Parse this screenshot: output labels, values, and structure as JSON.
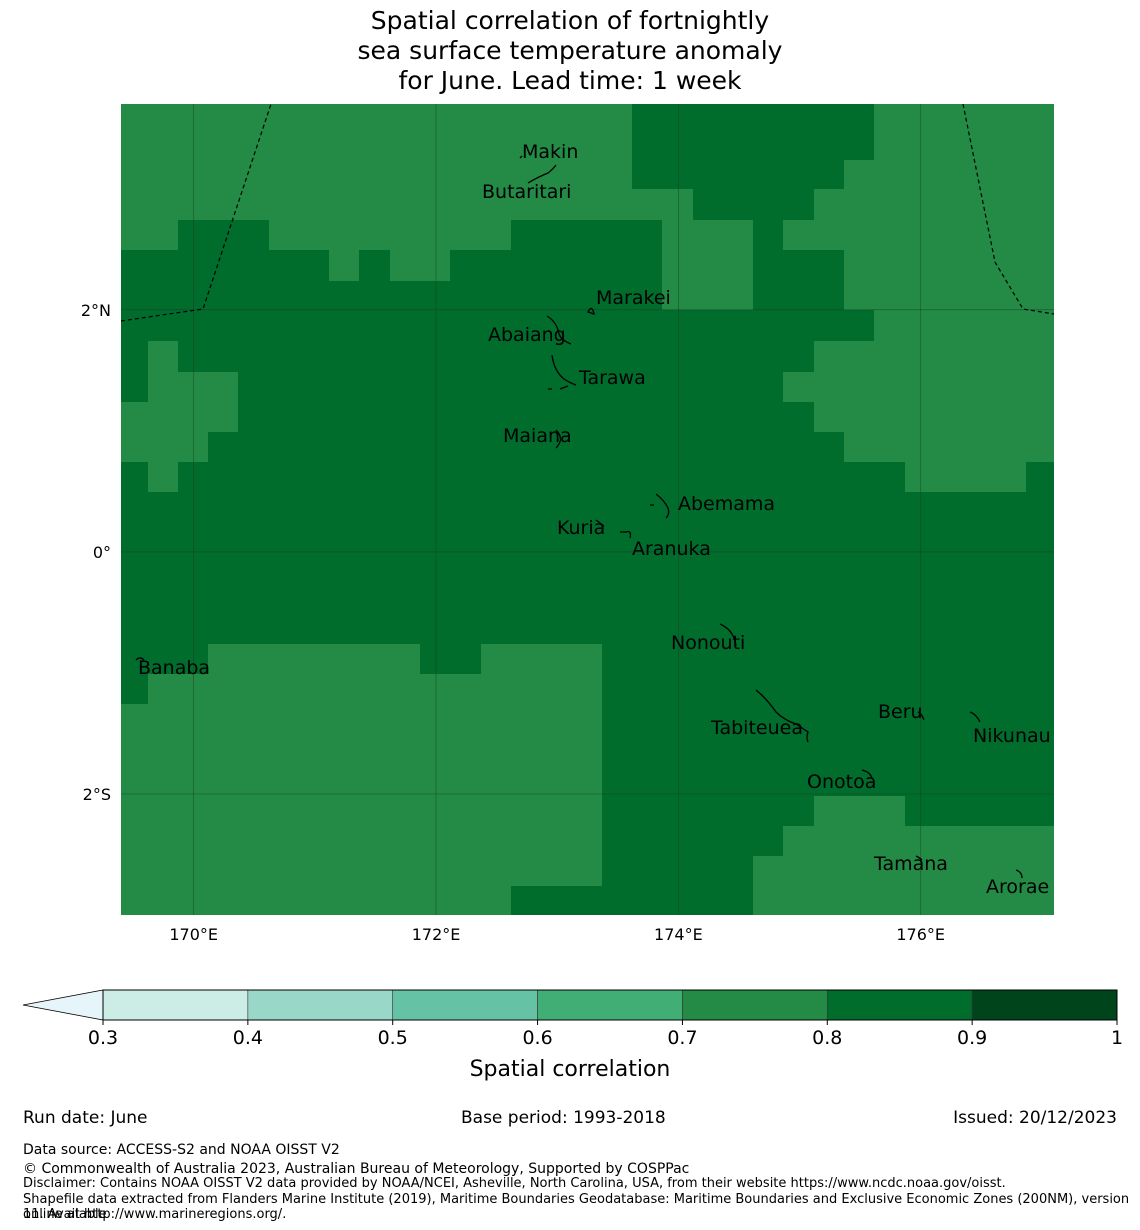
{
  "title_lines": [
    "Spatial correlation of fortnightly",
    "sea surface temperature anomaly",
    "for June. Lead time: 1 week"
  ],
  "map": {
    "lon_range": [
      169.4,
      177.1
    ],
    "lat_range": [
      -3.0,
      3.7
    ],
    "x_ticks": [
      {
        "value": 170,
        "label": "170°E"
      },
      {
        "value": 172,
        "label": "172°E"
      },
      {
        "value": 174,
        "label": "174°E"
      },
      {
        "value": 176,
        "label": "176°E"
      }
    ],
    "y_ticks": [
      {
        "value": 2,
        "label": "2°N"
      },
      {
        "value": 0,
        "label": "0°"
      },
      {
        "value": -2,
        "label": "2°S"
      }
    ],
    "colors": {
      "band_0_7_0_8": "#238b45",
      "band_0_8_0_9": "#006d2c",
      "gridline": "#1a3a22",
      "boundary": "#000000"
    },
    "places": [
      {
        "name": "Makin",
        "lon": 173.0,
        "lat": 3.3
      },
      {
        "name": "Butaritari",
        "lon": 172.8,
        "lat": 3.0
      },
      {
        "name": "Marakei",
        "lon": 173.3,
        "lat": 2.0
      },
      {
        "name": "Abaiang",
        "lon": 172.9,
        "lat": 1.8
      },
      {
        "name": "Tarawa",
        "lon": 173.0,
        "lat": 1.4
      },
      {
        "name": "Maiana",
        "lon": 173.0,
        "lat": 0.9
      },
      {
        "name": "Abemama",
        "lon": 173.9,
        "lat": 0.4
      },
      {
        "name": "Kuria",
        "lon": 173.4,
        "lat": 0.2
      },
      {
        "name": "Aranuka",
        "lon": 173.6,
        "lat": 0.1
      },
      {
        "name": "Nonouti",
        "lon": 174.4,
        "lat": -0.6
      },
      {
        "name": "Banaba",
        "lon": 169.5,
        "lat": -0.9
      },
      {
        "name": "Tabiteuea",
        "lon": 174.8,
        "lat": -1.2
      },
      {
        "name": "Beru",
        "lon": 176.0,
        "lat": -1.3
      },
      {
        "name": "Nikunau",
        "lon": 176.5,
        "lat": -1.4
      },
      {
        "name": "Onotoa",
        "lon": 175.6,
        "lat": -1.8
      },
      {
        "name": "Tamana",
        "lon": 176.0,
        "lat": -2.5
      },
      {
        "name": "Arorae",
        "lon": 176.8,
        "lat": -2.6
      }
    ]
  },
  "colorbar": {
    "title": "Spatial correlation",
    "extend_color": "#e5f5f9",
    "bins": [
      {
        "from": 0.3,
        "to": 0.4,
        "color": "#ccece6"
      },
      {
        "from": 0.4,
        "to": 0.5,
        "color": "#99d8c9"
      },
      {
        "from": 0.5,
        "to": 0.6,
        "color": "#66c2a4"
      },
      {
        "from": 0.6,
        "to": 0.7,
        "color": "#41ae76"
      },
      {
        "from": 0.7,
        "to": 0.8,
        "color": "#238b45"
      },
      {
        "from": 0.8,
        "to": 0.9,
        "color": "#006d2c"
      },
      {
        "from": 0.9,
        "to": 1.0,
        "color": "#00441b"
      }
    ],
    "tick_labels": [
      "0.3",
      "0.4",
      "0.5",
      "0.6",
      "0.7",
      "0.8",
      "0.9",
      "1"
    ]
  },
  "footer": {
    "run_date": "Run date: June",
    "base_period": "Base period: 1993-2018",
    "issued": "Issued: 20/12/2023",
    "data_source": "Data source: ACCESS-S2 and NOAA OISST V2",
    "copyright": "© Commonwealth of Australia 2023, Australian Bureau of Meteorology, Supported by COSPPac",
    "disclaimer": "Disclaimer: Contains NOAA OISST V2 data provided by NOAA/NCEI, Asheville, North Carolina, USA, from their website https://www.ncdc.noaa.gov/oisst.",
    "shapefile_1": "Shapefile data extracted from Flanders Marine Institute (2019), Maritime Boundaries Geodatabase: Maritime Boundaries and Exclusive Economic Zones (200NM), version 11. Available",
    "shapefile_2": "online at http://www.marineregions.org/."
  }
}
